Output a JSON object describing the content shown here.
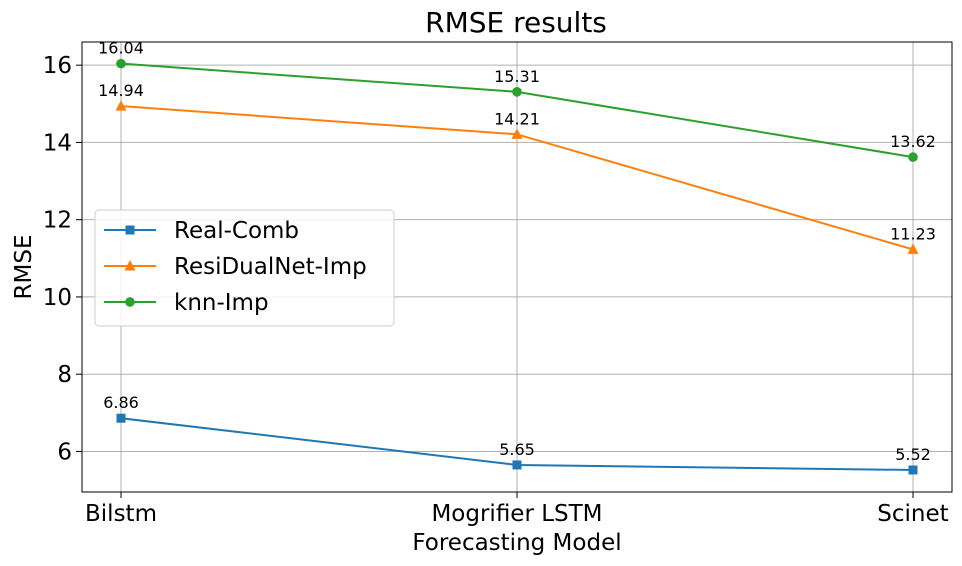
{
  "chart_data": {
    "type": "line",
    "title": "RMSE results",
    "xlabel": "Forecasting Model",
    "ylabel": "RMSE",
    "categories": [
      "Bilstm",
      "Mogrifier LSTM",
      "Scinet"
    ],
    "ylim": [
      4.95,
      16.6
    ],
    "yticks": [
      6,
      8,
      10,
      12,
      14,
      16
    ],
    "grid": true,
    "legend_position": "center-left",
    "series": [
      {
        "name": "Real-Comb",
        "values": [
          6.86,
          5.65,
          5.52
        ],
        "labels": [
          "6.86",
          "5.65",
          "5.52"
        ],
        "color": "#1f77b4",
        "marker": "square"
      },
      {
        "name": "ResiDualNet-Imp",
        "values": [
          14.94,
          14.21,
          11.23
        ],
        "labels": [
          "14.94",
          "14.21",
          "11.23"
        ],
        "color": "#ff7f0e",
        "marker": "triangle"
      },
      {
        "name": "knn-Imp",
        "values": [
          16.04,
          15.31,
          13.62
        ],
        "labels": [
          "16.04",
          "15.31",
          "13.62"
        ],
        "color": "#2ca02c",
        "marker": "circle"
      }
    ]
  }
}
